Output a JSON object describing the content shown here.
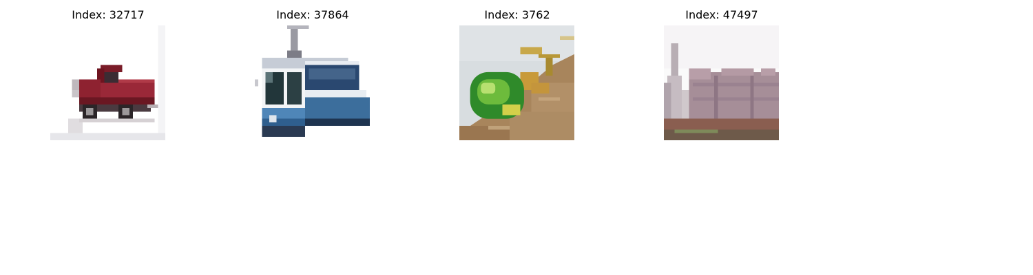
{
  "panels": [
    {
      "title": "Index: 32717",
      "subject": "red-pickup-truck"
    },
    {
      "title": "Index: 37864",
      "subject": "blue-white-tram"
    },
    {
      "title": "Index: 3762",
      "subject": "green-beetle-on-soil"
    },
    {
      "title": "Index: 47497",
      "subject": "building-facade"
    }
  ]
}
